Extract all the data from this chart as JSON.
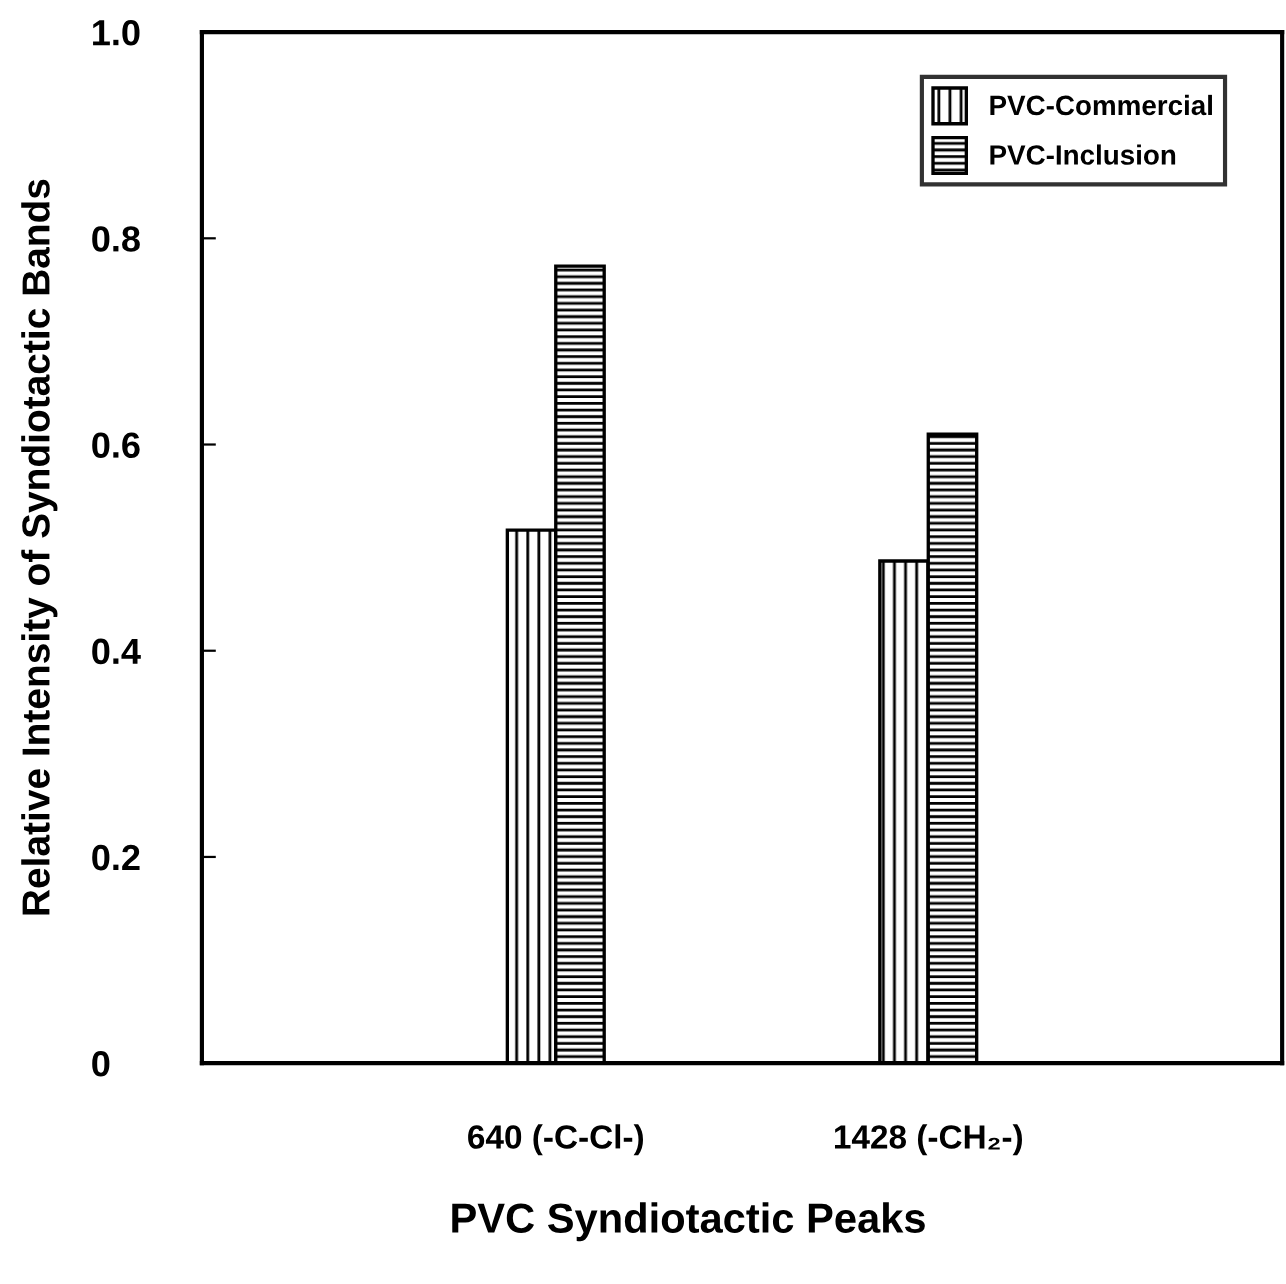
{
  "chart_data": {
    "type": "bar",
    "xlabel": "PVC Syndiotactic Peaks",
    "ylabel": "Relative Intensity of Syndiotactic Bands",
    "categories": [
      "640 (-C-Cl-)",
      "1428 (-CH₂-)"
    ],
    "series": [
      {
        "name": "PVC-Commercial",
        "color": "#000000",
        "values": [
          0.517,
          0.487
        ]
      },
      {
        "name": "PVC-Inclusion",
        "color": "#000000",
        "values": [
          0.773,
          0.61
        ]
      }
    ],
    "ylim": [
      0,
      1.0
    ],
    "yticks": [
      0,
      0.2,
      0.4,
      0.6,
      0.8,
      {
        "value": 1.0,
        "label": "1.0"
      }
    ],
    "grid": false,
    "legend": "top right"
  }
}
